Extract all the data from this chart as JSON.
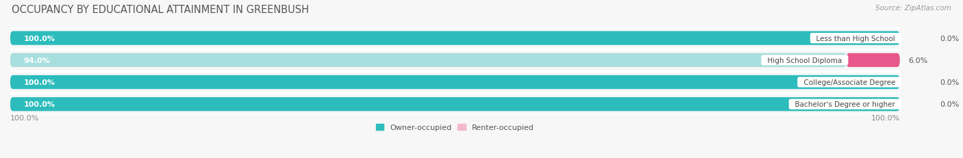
{
  "title": "OCCUPANCY BY EDUCATIONAL ATTAINMENT IN GREENBUSH",
  "source": "Source: ZipAtlas.com",
  "categories": [
    "Less than High School",
    "High School Diploma",
    "College/Associate Degree",
    "Bachelor's Degree or higher"
  ],
  "owner_pct": [
    100.0,
    94.0,
    100.0,
    100.0
  ],
  "renter_pct": [
    0.0,
    6.0,
    0.0,
    0.0
  ],
  "owner_color_solid": "#2dbcbc",
  "owner_color_light": "#a8dede",
  "renter_color_solid": "#e8588a",
  "renter_color_light": "#f4b8cc",
  "bg_row_color": "#efefef",
  "bg_color": "#f7f7f7",
  "title_fontsize": 10.5,
  "source_fontsize": 7.5,
  "label_fontsize": 8.0,
  "cat_fontsize": 7.5,
  "bar_height": 0.62
}
